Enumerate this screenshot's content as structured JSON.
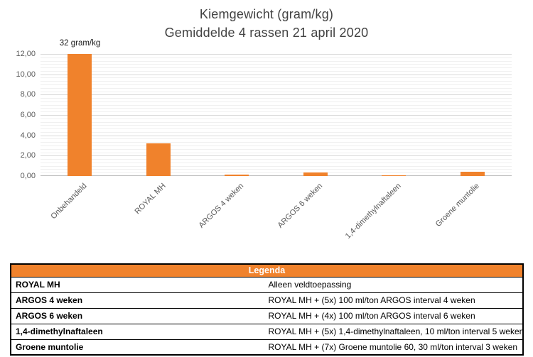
{
  "colors": {
    "bar_orange": "#f0822c",
    "legend_header_bg": "#f0822c",
    "title_gray": "#424242",
    "axis_label_gray": "#595959",
    "gridline_major": "#d9d9d9",
    "gridline_minor": "#f0f0f0"
  },
  "chart_data": {
    "type": "bar",
    "title": "Kiemgewicht (gram/kg)",
    "subtitle": "Gemiddelde 4 rassen 21 april 2020",
    "categories": [
      "Onbehandeld",
      "ROYAL MH",
      "ARGOS 4 weken",
      "ARGOS 6 weken",
      "1,4-dimethylnaftaleen",
      "Groene muntolie"
    ],
    "values": [
      32,
      3.2,
      0.15,
      0.35,
      0.1,
      0.4
    ],
    "annotation": "32 gram/kg",
    "annotation_category_index": 0,
    "xlabel": "",
    "ylabel": "",
    "ylim": [
      0,
      12
    ],
    "ytick_step": 2,
    "ytick_labels": [
      "0,00",
      "2,00",
      "4,00",
      "6,00",
      "8,00",
      "10,00",
      "12,00"
    ],
    "grid": true,
    "note_first_bar_clipped_at_axis_max": true,
    "legend_position": "none"
  },
  "legend": {
    "header": "Legenda",
    "rows": [
      {
        "term": "ROYAL MH",
        "description": "Alleen veldtoepassing"
      },
      {
        "term": "ARGOS 4 weken",
        "description": "ROYAL MH + (5x) 100 ml/ton ARGOS interval 4 weken"
      },
      {
        "term": "ARGOS 6 weken",
        "description": "ROYAL MH + (4x) 100 ml/ton ARGOS interval 6 weken"
      },
      {
        "term": "1,4-dimethylnaftaleen",
        "description": "ROYAL MH + (5x) 1,4-dimethylnaftaleen, 10 ml/ton interval 5 weken"
      },
      {
        "term": "Groene muntolie",
        "description": "ROYAL MH + (7x) Groene muntolie 60, 30 ml/ton interval 3 weken"
      }
    ]
  }
}
